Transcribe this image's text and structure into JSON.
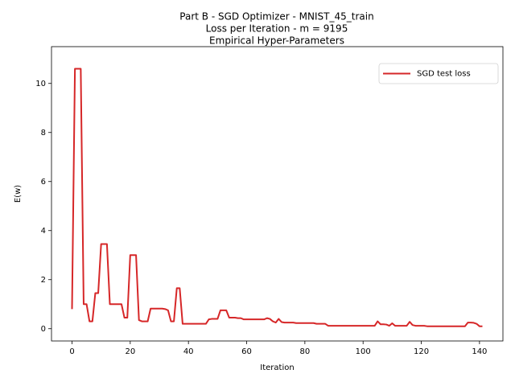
{
  "chart_data": {
    "type": "line",
    "title": [
      "Part B -  SGD Optimizer - MNIST_45_train",
      "Loss per Iteration - m = 9195",
      "Empirical Hyper-Parameters"
    ],
    "xlabel": "Iteration",
    "ylabel": "E(w)",
    "x": [
      0,
      1,
      2,
      3,
      4,
      5,
      6,
      7,
      8,
      9,
      10,
      11,
      12,
      13,
      14,
      15,
      16,
      17,
      18,
      19,
      20,
      21,
      22,
      23,
      24,
      25,
      26,
      27,
      28,
      29,
      30,
      31,
      32,
      33,
      34,
      35,
      36,
      37,
      38,
      39,
      40,
      41,
      42,
      43,
      44,
      45,
      46,
      47,
      48,
      49,
      50,
      51,
      52,
      53,
      54,
      55,
      56,
      57,
      58,
      59,
      60,
      61,
      62,
      63,
      64,
      65,
      66,
      67,
      68,
      69,
      70,
      71,
      72,
      73,
      74,
      75,
      76,
      77,
      78,
      79,
      80,
      81,
      82,
      83,
      84,
      85,
      86,
      87,
      88,
      89,
      90,
      91,
      92,
      93,
      94,
      95,
      96,
      97,
      98,
      99,
      100,
      101,
      102,
      103,
      104,
      105,
      106,
      107,
      108,
      109,
      110,
      111,
      112,
      113,
      114,
      115,
      116,
      117,
      118,
      119,
      120,
      121,
      122,
      123,
      124,
      125,
      126,
      127,
      128,
      129,
      130,
      131,
      132,
      133,
      134,
      135,
      136,
      137,
      138,
      139,
      140,
      141
    ],
    "series": [
      {
        "name": "SGD test loss",
        "color": "#d62728",
        "values": [
          0.8,
          10.6,
          10.6,
          10.6,
          1.0,
          1.0,
          0.3,
          0.3,
          1.45,
          1.45,
          3.45,
          3.45,
          3.45,
          1.0,
          1.0,
          1.0,
          1.0,
          1.0,
          0.45,
          0.45,
          3.0,
          3.0,
          3.0,
          0.35,
          0.3,
          0.3,
          0.3,
          0.82,
          0.82,
          0.82,
          0.82,
          0.82,
          0.8,
          0.75,
          0.3,
          0.3,
          1.65,
          1.65,
          0.2,
          0.2,
          0.2,
          0.2,
          0.2,
          0.2,
          0.2,
          0.2,
          0.2,
          0.38,
          0.4,
          0.4,
          0.4,
          0.75,
          0.75,
          0.75,
          0.45,
          0.45,
          0.45,
          0.43,
          0.43,
          0.38,
          0.38,
          0.38,
          0.38,
          0.38,
          0.38,
          0.38,
          0.38,
          0.43,
          0.4,
          0.3,
          0.25,
          0.4,
          0.27,
          0.25,
          0.25,
          0.25,
          0.25,
          0.23,
          0.23,
          0.23,
          0.23,
          0.23,
          0.23,
          0.23,
          0.2,
          0.2,
          0.2,
          0.2,
          0.12,
          0.12,
          0.12,
          0.12,
          0.12,
          0.12,
          0.12,
          0.12,
          0.12,
          0.12,
          0.12,
          0.12,
          0.12,
          0.12,
          0.12,
          0.12,
          0.12,
          0.3,
          0.18,
          0.18,
          0.17,
          0.12,
          0.22,
          0.12,
          0.12,
          0.12,
          0.12,
          0.12,
          0.28,
          0.15,
          0.12,
          0.12,
          0.12,
          0.12,
          0.1,
          0.1,
          0.1,
          0.1,
          0.1,
          0.1,
          0.1,
          0.1,
          0.1,
          0.1,
          0.1,
          0.1,
          0.1,
          0.1,
          0.25,
          0.25,
          0.24,
          0.2,
          0.1,
          0.1
        ]
      }
    ],
    "xlim": [
      -7.05,
      148.05
    ],
    "ylim": [
      -0.5,
      11.5
    ],
    "xticks": [
      0,
      20,
      40,
      60,
      80,
      100,
      120,
      140
    ],
    "yticks": [
      0,
      2,
      4,
      6,
      8,
      10
    ],
    "legend": "upper right",
    "grid": false
  }
}
